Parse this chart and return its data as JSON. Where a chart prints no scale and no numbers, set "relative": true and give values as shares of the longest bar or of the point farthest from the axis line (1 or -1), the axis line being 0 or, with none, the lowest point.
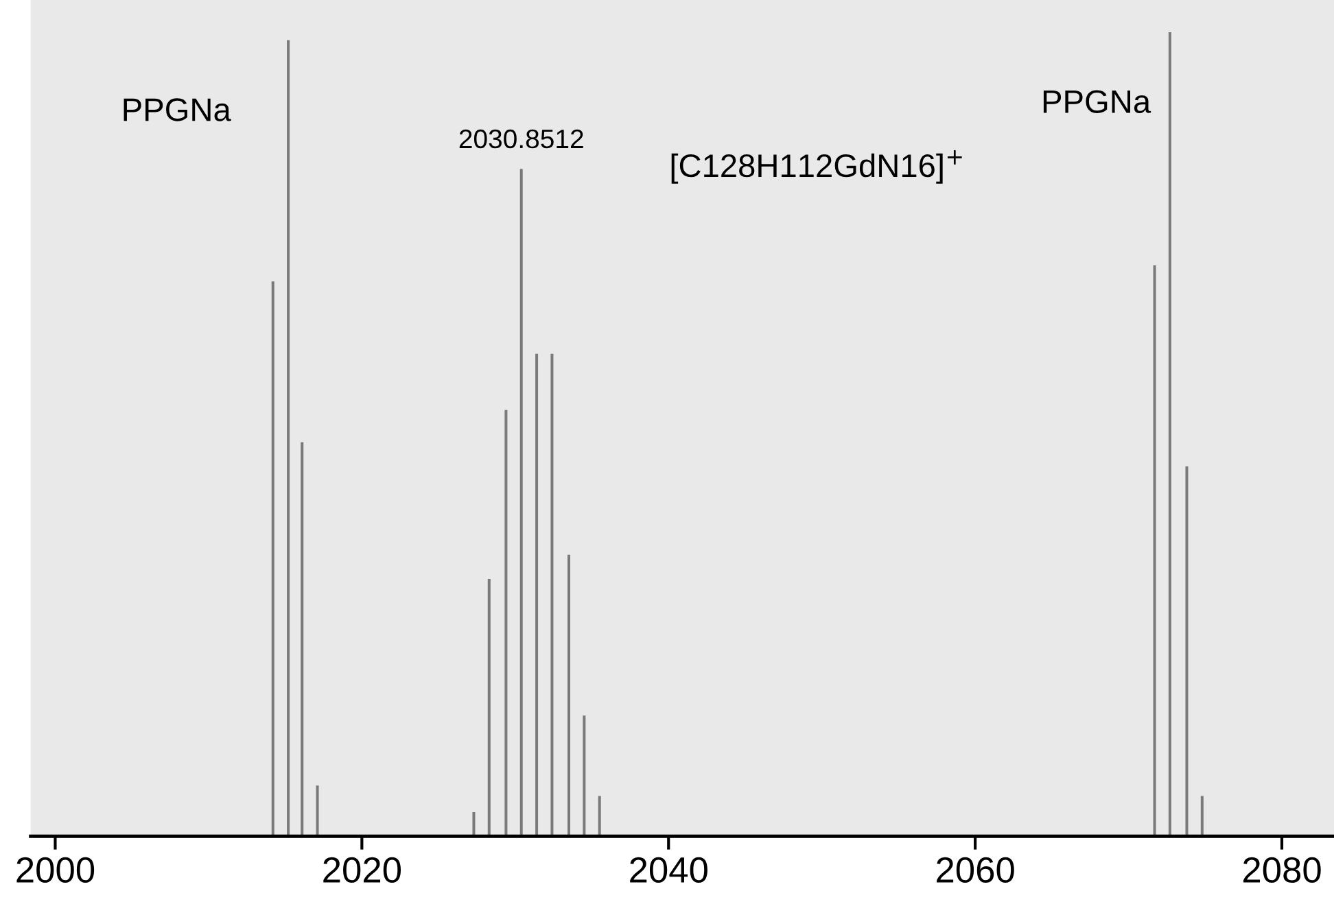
{
  "chart_data": {
    "type": "bar",
    "relative": true,
    "color": "#7a7a7a",
    "x": [
      2014.2,
      2015.2,
      2016.1,
      2017.1,
      2027.3,
      2028.3,
      2029.4,
      2030.4,
      2031.4,
      2032.4,
      2033.5,
      2034.5,
      2035.5,
      2071.7,
      2072.7,
      2073.8,
      2074.8
    ],
    "values": [
      0.69,
      0.99,
      0.49,
      0.063,
      0.03,
      0.32,
      0.53,
      0.83,
      0.6,
      0.6,
      0.35,
      0.15,
      0.05,
      0.71,
      1,
      0.46,
      0.05
    ],
    "xlim": [
      1998.4,
      2083.4
    ],
    "xticks": [
      2000,
      2020,
      2040,
      2060,
      2080
    ],
    "grid": false,
    "annotations": [
      {
        "text": "PPGNa",
        "x": 2015.2,
        "y": 0.99
      },
      {
        "text": "2030.8512",
        "x": 2030.4,
        "y": 0.83
      },
      "[C128H112GdN16]$^{+}$",
      {
        "text": "PPGNa",
        "x": 2072.7,
        "y": 1
      }
    ]
  }
}
